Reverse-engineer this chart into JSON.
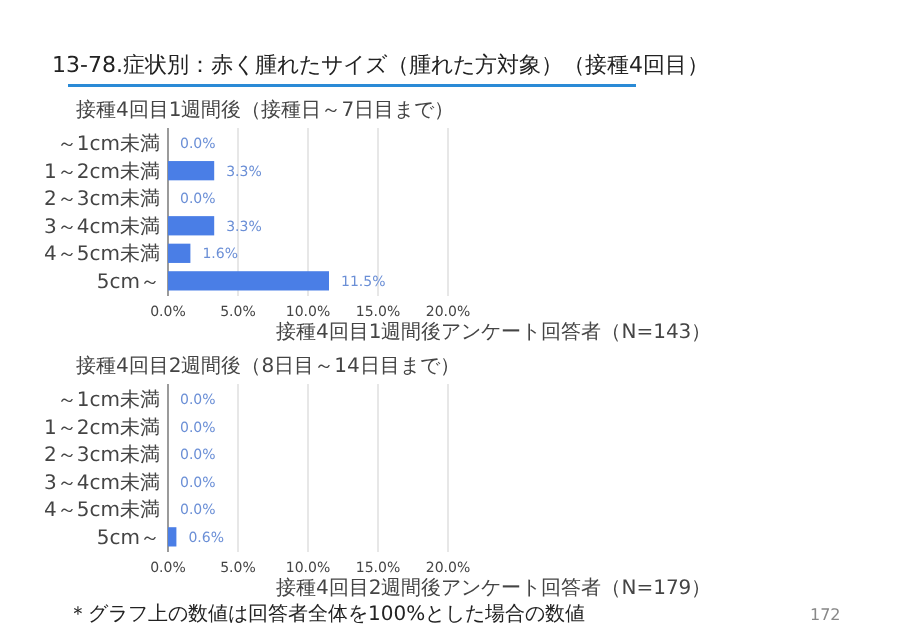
{
  "chart_data": [
    {
      "type": "bar",
      "orientation": "horizontal",
      "title": "13-78.症状別：赤く腫れたサイズ（腫れた方対象）（接種4回目）",
      "subtitle": "接種4回目1週間後（接種日～7日目まで）",
      "categories": [
        "～1cm未満",
        "1～2cm未満",
        "2～3cm未満",
        "3～4cm未満",
        "4～5cm未満",
        "5cm～"
      ],
      "values": [
        0,
        3.3,
        0,
        3.3,
        1.6,
        11.5
      ],
      "value_labels": [
        "0.0%",
        "3.3%",
        "0.0%",
        "3.3%",
        "1.6%",
        "11.5%"
      ],
      "color": "#4a7ee6",
      "xlim": [
        0,
        20
      ],
      "xticks": [
        {
          "value": 0,
          "label": "0.0%"
        },
        {
          "value": 5,
          "label": "5.0%"
        },
        {
          "value": 10,
          "label": "10.0%"
        },
        {
          "value": 15,
          "label": "15.0%"
        },
        {
          "value": 20,
          "label": "20.0%"
        }
      ],
      "grid": "x",
      "annotations": [
        "接種4回目1週間後アンケート回答者（N=143）"
      ]
    },
    {
      "type": "bar",
      "orientation": "horizontal",
      "title": "接種4回目2週間後（8日目～14日目まで）",
      "categories": [
        "～1cm未満",
        "1～2cm未満",
        "2～3cm未満",
        "3～4cm未満",
        "4～5cm未満",
        "5cm～"
      ],
      "values": [
        0,
        0,
        0,
        0,
        0,
        0.6
      ],
      "value_labels": [
        "0.0%",
        "0.0%",
        "0.0%",
        "0.0%",
        "0.0%",
        "0.6%"
      ],
      "color": "#4a7ee6",
      "xlim": [
        0,
        20
      ],
      "xticks": [
        {
          "value": 0,
          "label": "0.0%"
        },
        {
          "value": 5,
          "label": "5.0%"
        },
        {
          "value": 10,
          "label": "10.0%"
        },
        {
          "value": 15,
          "label": "15.0%"
        },
        {
          "value": 20,
          "label": "20.0%"
        }
      ],
      "grid": "x",
      "annotations": [
        "接種4回目2週間後アンケート回答者（N=179）",
        "＊グラフ上の数値は回答者全体を100%とした場合の数値",
        "172"
      ]
    }
  ]
}
